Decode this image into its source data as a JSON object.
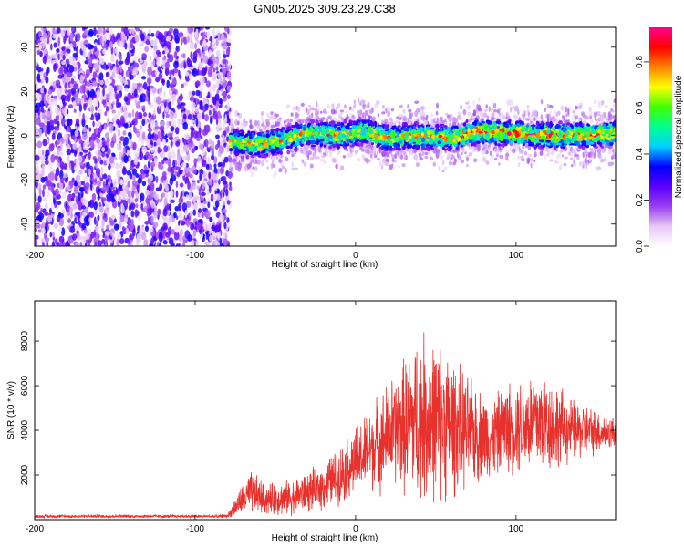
{
  "title": "GN05.2025.309.23.29.C38",
  "chart_data": [
    {
      "type": "heatmap",
      "xlabel": "Height of straight line (km)",
      "ylabel": "Frequency (Hz)",
      "xlim": [
        -200,
        162
      ],
      "ylim": [
        -50,
        49
      ],
      "xticks": [
        -200,
        -100,
        0,
        100
      ],
      "yticks": [
        -40,
        -20,
        0,
        20,
        40
      ],
      "noise_region_x": [
        -200,
        -78
      ],
      "signal_band_center_hz": [
        {
          "x": -78,
          "f": -3
        },
        {
          "x": -60,
          "f": -4
        },
        {
          "x": -45,
          "f": -2
        },
        {
          "x": -30,
          "f": 1
        },
        {
          "x": -10,
          "f": 0
        },
        {
          "x": 5,
          "f": 2
        },
        {
          "x": 20,
          "f": -1
        },
        {
          "x": 40,
          "f": 0
        },
        {
          "x": 60,
          "f": -1
        },
        {
          "x": 75,
          "f": 2
        },
        {
          "x": 100,
          "f": 1
        },
        {
          "x": 130,
          "f": 0
        },
        {
          "x": 162,
          "f": 1
        }
      ],
      "colorbar": {
        "label": "Normalized spectral amplitude",
        "range": [
          0,
          0.95
        ],
        "ticks": [
          0,
          0.2,
          0.4,
          0.6,
          0.8
        ],
        "tick_labels": [
          "0.0",
          "0.2",
          "0.4",
          "0.6",
          "0.8"
        ],
        "colors": [
          "#ffffff",
          "#e6c6f5",
          "#9b3df0",
          "#5a00ff",
          "#0000ff",
          "#00d0ff",
          "#00ff90",
          "#40ff00",
          "#ffff00",
          "#ff8000",
          "#ff0000",
          "#ff0090"
        ]
      }
    },
    {
      "type": "line",
      "xlabel": "Height of straight line (km)",
      "ylabel": "SNR (10 * v/v)",
      "xlim": [
        -200,
        162
      ],
      "ylim": [
        0,
        9800
      ],
      "xticks": [
        -200,
        -100,
        0,
        100
      ],
      "yticks": [
        2000,
        4000,
        6000,
        8000
      ],
      "series": [
        {
          "name": "SNR",
          "color": "#e8302c",
          "envelope": [
            {
              "x": -200,
              "mean": 150,
              "amp": 80
            },
            {
              "x": -80,
              "mean": 150,
              "amp": 80
            },
            {
              "x": -72,
              "mean": 800,
              "amp": 700
            },
            {
              "x": -65,
              "mean": 1200,
              "amp": 1100
            },
            {
              "x": -55,
              "mean": 900,
              "amp": 800
            },
            {
              "x": -40,
              "mean": 1000,
              "amp": 900
            },
            {
              "x": -20,
              "mean": 1500,
              "amp": 1200
            },
            {
              "x": -5,
              "mean": 2300,
              "amp": 1600
            },
            {
              "x": 10,
              "mean": 3200,
              "amp": 2200
            },
            {
              "x": 25,
              "mean": 4000,
              "amp": 3000
            },
            {
              "x": 40,
              "mean": 4600,
              "amp": 4400
            },
            {
              "x": 55,
              "mean": 4400,
              "amp": 4000
            },
            {
              "x": 70,
              "mean": 3900,
              "amp": 2800
            },
            {
              "x": 85,
              "mean": 3700,
              "amp": 2000
            },
            {
              "x": 100,
              "mean": 4300,
              "amp": 2500
            },
            {
              "x": 115,
              "mean": 4400,
              "amp": 2800
            },
            {
              "x": 135,
              "mean": 4000,
              "amp": 1600
            },
            {
              "x": 162,
              "mean": 3900,
              "amp": 800
            }
          ]
        }
      ]
    }
  ]
}
